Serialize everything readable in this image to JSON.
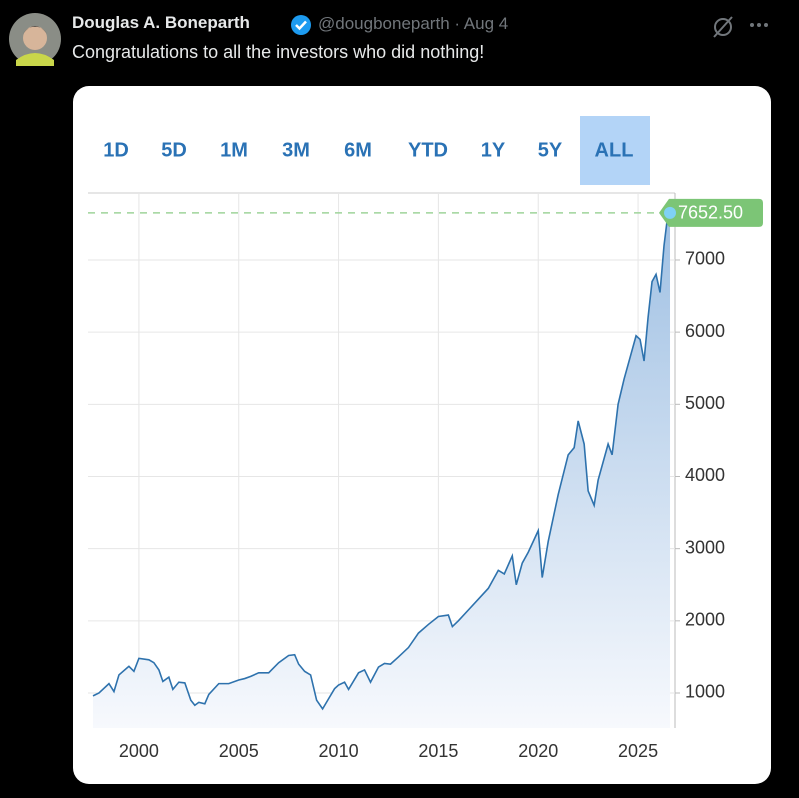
{
  "tweet": {
    "name": "Douglas A. Boneparth",
    "handle_date": "@dougboneparth · Aug 4",
    "text": "Congratulations to all the investors who did nothing!"
  },
  "range_buttons": [
    "1D",
    "5D",
    "1M",
    "3M",
    "6M",
    "YTD",
    "1Y",
    "5Y",
    "ALL"
  ],
  "selected_range_index": 8,
  "chart_data": {
    "type": "area",
    "color": "#2e72ad",
    "x": [
      1997.7,
      1998.0,
      1998.5,
      1998.75,
      1999.0,
      1999.5,
      1999.75,
      2000.0,
      2000.5,
      2000.75,
      2001.0,
      2001.2,
      2001.5,
      2001.7,
      2002.0,
      2002.3,
      2002.6,
      2002.8,
      2003.0,
      2003.3,
      2003.5,
      2004.0,
      2004.5,
      2005.0,
      2005.3,
      2005.6,
      2006.0,
      2006.5,
      2007.0,
      2007.5,
      2007.8,
      2008.0,
      2008.3,
      2008.6,
      2008.9,
      2009.2,
      2009.5,
      2009.8,
      2010.0,
      2010.3,
      2010.5,
      2011.0,
      2011.3,
      2011.6,
      2012.0,
      2012.3,
      2012.6,
      2013.0,
      2013.5,
      2014.0,
      2014.5,
      2015.0,
      2015.5,
      2015.7,
      2016.0,
      2016.5,
      2017.0,
      2017.5,
      2018.0,
      2018.3,
      2018.7,
      2018.9,
      2019.2,
      2019.5,
      2020.0,
      2020.2,
      2020.5,
      2021.0,
      2021.5,
      2021.8,
      2022.0,
      2022.3,
      2022.5,
      2022.8,
      2023.0,
      2023.5,
      2023.7,
      2024.0,
      2024.3,
      2024.6,
      2024.9,
      2025.1,
      2025.3,
      2025.5,
      2025.7,
      2025.9,
      2026.1,
      2026.3,
      2026.5,
      2026.6
    ],
    "values": [
      960,
      1000,
      1130,
      1020,
      1250,
      1370,
      1300,
      1480,
      1460,
      1420,
      1320,
      1160,
      1220,
      1050,
      1150,
      1140,
      900,
      830,
      870,
      850,
      980,
      1130,
      1130,
      1180,
      1200,
      1230,
      1280,
      1280,
      1420,
      1520,
      1530,
      1400,
      1300,
      1250,
      900,
      780,
      920,
      1060,
      1110,
      1150,
      1050,
      1280,
      1320,
      1150,
      1360,
      1410,
      1400,
      1500,
      1630,
      1830,
      1950,
      2060,
      2080,
      1920,
      2000,
      2150,
      2300,
      2450,
      2700,
      2650,
      2900,
      2500,
      2800,
      2950,
      3250,
      2600,
      3100,
      3750,
      4300,
      4400,
      4770,
      4450,
      3800,
      3600,
      3950,
      4450,
      4300,
      5000,
      5350,
      5650,
      5950,
      5900,
      5600,
      6200,
      6700,
      6800,
      6550,
      7200,
      7650,
      7652.5
    ],
    "xlim": [
      1997.45,
      2026.85
    ],
    "ylim": [
      515,
      7928
    ],
    "xticks": [
      2000,
      2005,
      2010,
      2015,
      2020,
      2025
    ],
    "yticks": [
      1000,
      2000,
      3000,
      4000,
      5000,
      6000,
      7000
    ],
    "grid": true,
    "reference_line": {
      "value": 7652.5,
      "label": "7652.50",
      "color": "#9fd49a"
    }
  }
}
